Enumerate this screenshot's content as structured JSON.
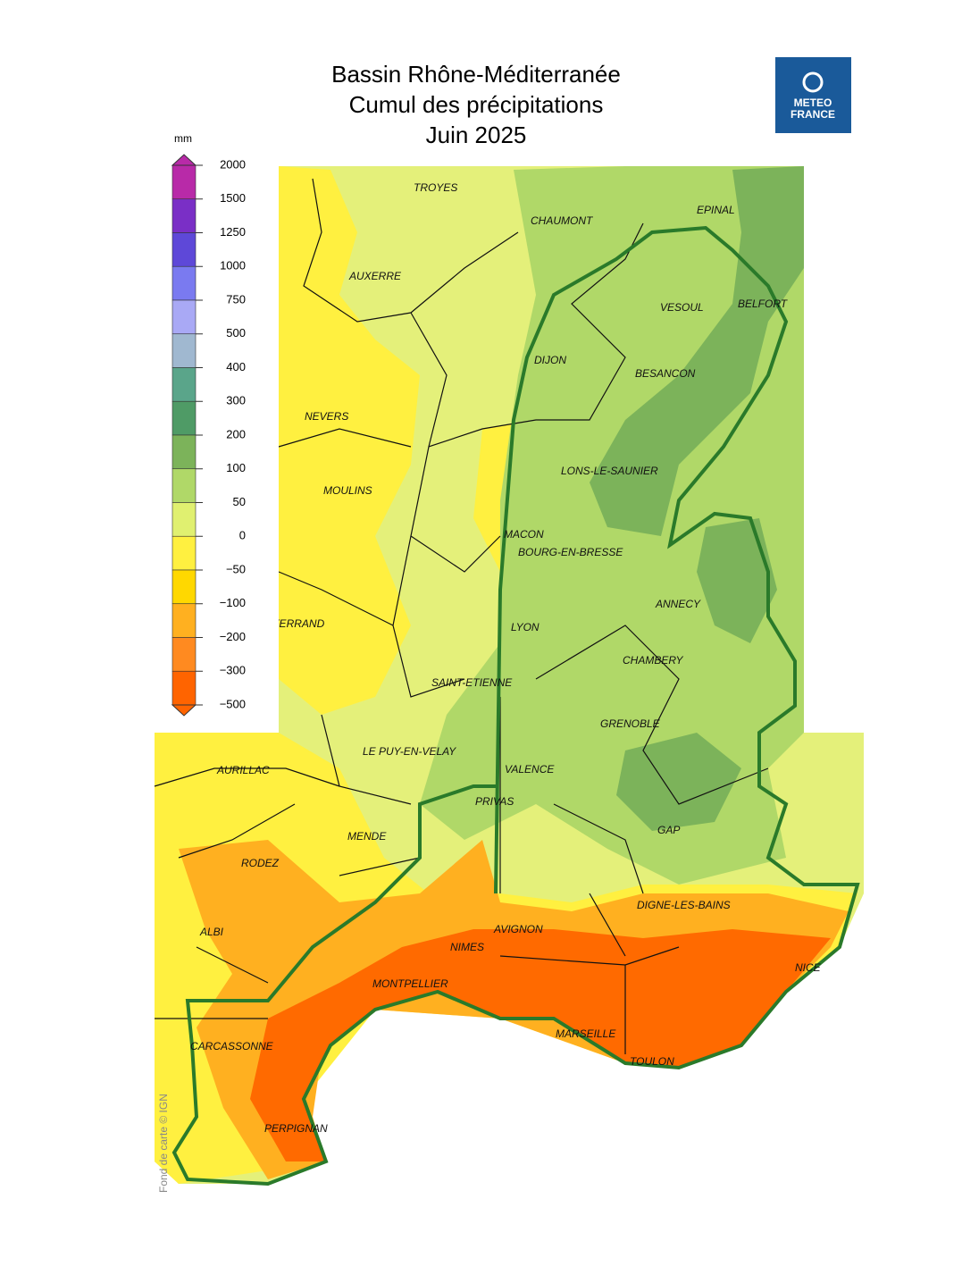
{
  "header": {
    "title_lines": [
      "Bassin Rhône-Méditerranée",
      "Cumul des précipitations",
      "Juin 2025"
    ],
    "logo": [
      "METEO",
      "FRANCE"
    ]
  },
  "legend": {
    "unit": "mm",
    "ticks": [
      2000,
      1500,
      1250,
      1000,
      750,
      500,
      400,
      300,
      200,
      100,
      50,
      0,
      {
        "value": -50,
        "label": "−50"
      },
      {
        "value": -100,
        "label": "−100"
      },
      {
        "value": -200,
        "label": "−200"
      },
      {
        "value": -300,
        "label": "−300"
      },
      {
        "value": -500,
        "label": "−500"
      }
    ],
    "colors": [
      "#b82aa8",
      "#7a2fc6",
      "#5e48d8",
      "#7a7af0",
      "#a9a9f5",
      "#a0b8d0",
      "#5aa58a",
      "#4f9b66",
      "#7cb35a",
      "#b0d868",
      "#e0f070",
      "#fff040",
      "#ffd800",
      "#ffb020",
      "#ff8a20",
      "#ff6400"
    ]
  },
  "map": {
    "cities": [
      "TROYES",
      "CHAUMONT",
      "EPINAL",
      "AUXERRE",
      "VESOUL",
      "BELFORT",
      "DIJON",
      "BESANCON",
      "NEVERS",
      "LONS-LE-SAUNIER",
      "MOULINS",
      "MACON",
      "BOURG-EN-BRESSE",
      "ANNECY",
      "CLERMONT-FERRAND",
      "LYON",
      "CHAMBERY",
      "SAINT-ETIENNE",
      "AURILLAC",
      "LE PUY-EN-VELAY",
      "VALENCE",
      "GRENOBLE",
      "PRIVAS",
      "MENDE",
      "GAP",
      "RODEZ",
      "DIGNE-LES-BAINS",
      "ALBI",
      "NIMES",
      "AVIGNON",
      "NICE",
      "MONTPELLIER",
      "MARSEILLE",
      "TOULON",
      "CARCASSONNE",
      "PERPIGNAN"
    ],
    "credit": "Fond de carte © IGN"
  }
}
